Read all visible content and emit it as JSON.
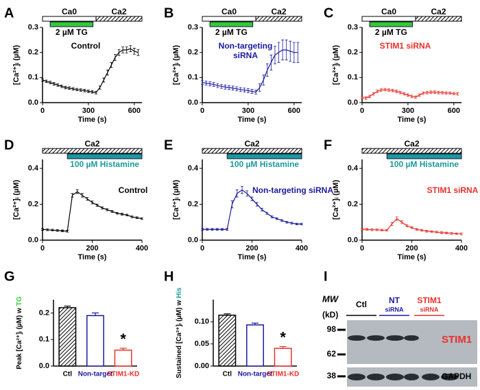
{
  "chart_data": [
    {
      "type": "line",
      "panel": "A",
      "xlabel": "Time (s)",
      "ylabel": "[Ca²⁺]ᵢ (µM)",
      "xlim": [
        0,
        650
      ],
      "xticks": [
        0,
        300,
        600
      ],
      "ylim": [
        0,
        0.3
      ],
      "yticks": [
        {
          "value": 0,
          "label": "0.0"
        },
        {
          "value": 0.1,
          "label": "0.1"
        },
        {
          "value": 0.2,
          "label": "0.2"
        },
        {
          "value": 0.3,
          "label": "0.3"
        }
      ],
      "periods": [
        {
          "label": "Ca0",
          "start": 0,
          "end": 350,
          "style": "open"
        },
        {
          "label": "Ca2",
          "start": 350,
          "end": 650,
          "style": "hatched"
        }
      ],
      "treatment": {
        "label": "2 µM TG",
        "start": 50,
        "end": 330,
        "color": "#33cc33",
        "label_color": "#000000"
      },
      "x": [
        0,
        25,
        50,
        75,
        100,
        125,
        150,
        175,
        200,
        225,
        250,
        275,
        300,
        325,
        350,
        375,
        400,
        425,
        450,
        475,
        500,
        525,
        550,
        575,
        600,
        625
      ],
      "series": [
        {
          "name": "Control",
          "color": "#000000",
          "values": [
            0.09,
            0.085,
            0.08,
            0.075,
            0.07,
            0.065,
            0.06,
            0.058,
            0.055,
            0.052,
            0.05,
            0.048,
            0.045,
            0.043,
            0.04,
            0.06,
            0.09,
            0.12,
            0.15,
            0.18,
            0.2,
            0.21,
            0.21,
            0.215,
            0.205,
            0.2
          ],
          "errors": [
            0.005,
            0.005,
            0.005,
            0.005,
            0.005,
            0.005,
            0.005,
            0.005,
            0.005,
            0.005,
            0.005,
            0.005,
            0.005,
            0.005,
            0.005,
            0.006,
            0.008,
            0.01,
            0.01,
            0.012,
            0.012,
            0.012,
            0.012,
            0.012,
            0.012,
            0.012
          ]
        }
      ]
    },
    {
      "type": "line",
      "panel": "B",
      "xlabel": "Time (s)",
      "ylabel": "[Ca²⁺]ᵢ (µM)",
      "xlim": [
        0,
        650
      ],
      "xticks": [
        0,
        300,
        600
      ],
      "ylim": [
        0,
        0.3
      ],
      "yticks": [
        {
          "value": 0,
          "label": "0.0"
        },
        {
          "value": 0.1,
          "label": "0.1"
        },
        {
          "value": 0.2,
          "label": "0.2"
        },
        {
          "value": 0.3,
          "label": "0.3"
        }
      ],
      "periods": [
        {
          "label": "Ca0",
          "start": 0,
          "end": 350,
          "style": "open"
        },
        {
          "label": "Ca2",
          "start": 350,
          "end": 650,
          "style": "hatched"
        }
      ],
      "treatment": {
        "label": "2 µM TG",
        "start": 50,
        "end": 330,
        "color": "#33cc33",
        "label_color": "#000000"
      },
      "x": [
        0,
        25,
        50,
        75,
        100,
        125,
        150,
        175,
        200,
        225,
        250,
        275,
        300,
        325,
        350,
        375,
        400,
        425,
        450,
        475,
        500,
        525,
        550,
        575,
        600,
        625
      ],
      "series": [
        {
          "name": "Non-targeting siRNA",
          "color": "#1a1aa0",
          "values": [
            0.08,
            0.078,
            0.075,
            0.072,
            0.068,
            0.065,
            0.062,
            0.06,
            0.058,
            0.055,
            0.052,
            0.05,
            0.048,
            0.045,
            0.042,
            0.06,
            0.09,
            0.13,
            0.16,
            0.19,
            0.2,
            0.21,
            0.21,
            0.205,
            0.2,
            0.2
          ],
          "errors": [
            0.008,
            0.008,
            0.008,
            0.008,
            0.008,
            0.008,
            0.008,
            0.008,
            0.008,
            0.008,
            0.008,
            0.008,
            0.008,
            0.008,
            0.008,
            0.015,
            0.02,
            0.025,
            0.03,
            0.035,
            0.04,
            0.04,
            0.04,
            0.04,
            0.04,
            0.04
          ]
        }
      ]
    },
    {
      "type": "line",
      "panel": "C",
      "xlabel": "Time (s)",
      "ylabel": "[Ca²⁺]ᵢ (µM)",
      "xlim": [
        0,
        650
      ],
      "xticks": [
        0,
        300,
        600
      ],
      "ylim": [
        0,
        0.3
      ],
      "yticks": [
        {
          "value": 0,
          "label": "0.0"
        },
        {
          "value": 0.1,
          "label": "0.1"
        },
        {
          "value": 0.2,
          "label": "0.2"
        },
        {
          "value": 0.3,
          "label": "0.3"
        }
      ],
      "periods": [
        {
          "label": "Ca0",
          "start": 0,
          "end": 350,
          "style": "open"
        },
        {
          "label": "Ca2",
          "start": 350,
          "end": 650,
          "style": "hatched"
        }
      ],
      "treatment": {
        "label": "2 µM TG",
        "start": 50,
        "end": 330,
        "color": "#33cc33",
        "label_color": "#000000"
      },
      "x": [
        0,
        25,
        50,
        75,
        100,
        125,
        150,
        175,
        200,
        225,
        250,
        275,
        300,
        325,
        350,
        375,
        400,
        425,
        450,
        475,
        500,
        525,
        550,
        575,
        600,
        625
      ],
      "series": [
        {
          "name": "STIM1 siRNA",
          "color": "#e8302a",
          "values": [
            0.02,
            0.018,
            0.025,
            0.035,
            0.045,
            0.05,
            0.052,
            0.05,
            0.048,
            0.045,
            0.04,
            0.035,
            0.03,
            0.025,
            0.022,
            0.03,
            0.038,
            0.04,
            0.042,
            0.042,
            0.04,
            0.04,
            0.038,
            0.038,
            0.036,
            0.035
          ],
          "errors": [
            0.005,
            0.005,
            0.005,
            0.005,
            0.005,
            0.005,
            0.005,
            0.005,
            0.005,
            0.005,
            0.005,
            0.005,
            0.005,
            0.005,
            0.005,
            0.005,
            0.005,
            0.005,
            0.005,
            0.005,
            0.005,
            0.005,
            0.005,
            0.005,
            0.005,
            0.005
          ]
        }
      ]
    },
    {
      "type": "line",
      "panel": "D",
      "xlabel": "Time (s)",
      "ylabel": "[Ca²⁺]ᵢ (µM)",
      "xlim": [
        0,
        400
      ],
      "xticks": [
        0,
        200,
        400
      ],
      "ylim": [
        0,
        0.45
      ],
      "yticks": [
        {
          "value": 0,
          "label": "0.0"
        },
        {
          "value": 0.2,
          "label": "0.2"
        },
        {
          "value": 0.4,
          "label": "0.4"
        }
      ],
      "periods": [
        {
          "label": "Ca2",
          "start": 0,
          "end": 400,
          "style": "hatched"
        }
      ],
      "treatment": {
        "label": "100 µM Histamine",
        "start": 100,
        "end": 400,
        "color": "#1a9a9a",
        "label_color": "#1a9a9a"
      },
      "x": [
        0,
        20,
        40,
        60,
        80,
        100,
        120,
        140,
        160,
        180,
        200,
        220,
        240,
        260,
        280,
        300,
        320,
        340,
        360,
        380,
        400
      ],
      "series": [
        {
          "name": "Control",
          "color": "#000000",
          "values": [
            0.06,
            0.058,
            0.056,
            0.054,
            0.052,
            0.05,
            0.25,
            0.27,
            0.25,
            0.23,
            0.21,
            0.195,
            0.18,
            0.17,
            0.16,
            0.15,
            0.145,
            0.14,
            0.13,
            0.125,
            0.12
          ],
          "errors": [
            0.005,
            0.005,
            0.005,
            0.005,
            0.005,
            0.005,
            0.01,
            0.01,
            0.01,
            0.008,
            0.008,
            0.006,
            0.006,
            0.006,
            0.006,
            0.005,
            0.005,
            0.005,
            0.005,
            0.005,
            0.005
          ]
        }
      ]
    },
    {
      "type": "line",
      "panel": "E",
      "xlabel": "Time (s)",
      "ylabel": "[Ca²⁺]ᵢ (µM)",
      "xlim": [
        0,
        400
      ],
      "xticks": [
        0,
        200,
        400
      ],
      "ylim": [
        0,
        0.45
      ],
      "yticks": [
        {
          "value": 0,
          "label": "0.0"
        },
        {
          "value": 0.2,
          "label": "0.2"
        },
        {
          "value": 0.4,
          "label": "0.4"
        }
      ],
      "periods": [
        {
          "label": "Ca2",
          "start": 0,
          "end": 400,
          "style": "hatched"
        }
      ],
      "treatment": {
        "label": "100 µM Histamine",
        "start": 100,
        "end": 400,
        "color": "#1a9a9a",
        "label_color": "#1a9a9a"
      },
      "x": [
        0,
        20,
        40,
        60,
        80,
        100,
        120,
        140,
        160,
        180,
        200,
        220,
        240,
        260,
        280,
        300,
        320,
        340,
        360,
        380,
        400
      ],
      "series": [
        {
          "name": "Non-targeting siRNA",
          "color": "#1a1aa0",
          "values": [
            0.06,
            0.06,
            0.06,
            0.06,
            0.06,
            0.06,
            0.2,
            0.26,
            0.28,
            0.26,
            0.23,
            0.2,
            0.17,
            0.15,
            0.13,
            0.12,
            0.11,
            0.1,
            0.095,
            0.09,
            0.09
          ],
          "errors": [
            0.005,
            0.005,
            0.005,
            0.005,
            0.005,
            0.005,
            0.02,
            0.02,
            0.02,
            0.015,
            0.01,
            0.01,
            0.008,
            0.006,
            0.006,
            0.005,
            0.005,
            0.005,
            0.005,
            0.005,
            0.005
          ]
        }
      ]
    },
    {
      "type": "line",
      "panel": "F",
      "xlabel": "Time (s)",
      "ylabel": "[Ca²⁺]ᵢ (µM)",
      "xlim": [
        0,
        400
      ],
      "xticks": [
        0,
        200,
        400
      ],
      "ylim": [
        0,
        0.45
      ],
      "yticks": [
        {
          "value": 0,
          "label": "0.0"
        },
        {
          "value": 0.2,
          "label": "0.2"
        },
        {
          "value": 0.4,
          "label": "0.4"
        }
      ],
      "periods": [
        {
          "label": "Ca2",
          "start": 0,
          "end": 400,
          "style": "hatched"
        }
      ],
      "treatment": {
        "label": "100 µM Histamine",
        "start": 100,
        "end": 400,
        "color": "#1a9a9a",
        "label_color": "#1a9a9a"
      },
      "x": [
        0,
        20,
        40,
        60,
        80,
        100,
        120,
        140,
        160,
        180,
        200,
        220,
        240,
        260,
        280,
        300,
        320,
        340,
        360,
        380,
        400
      ],
      "series": [
        {
          "name": "STIM1 siRNA",
          "color": "#e8302a",
          "values": [
            0.06,
            0.06,
            0.058,
            0.058,
            0.056,
            0.055,
            0.09,
            0.12,
            0.1,
            0.08,
            0.07,
            0.06,
            0.055,
            0.05,
            0.048,
            0.045,
            0.042,
            0.04,
            0.038,
            0.036,
            0.035
          ],
          "errors": [
            0.005,
            0.005,
            0.005,
            0.005,
            0.005,
            0.005,
            0.008,
            0.01,
            0.008,
            0.006,
            0.005,
            0.005,
            0.005,
            0.005,
            0.005,
            0.005,
            0.005,
            0.005,
            0.005,
            0.005,
            0.005
          ]
        }
      ]
    },
    {
      "type": "bar",
      "panel": "G",
      "ylabel": "Peak [Ca²⁺]ᵢ (µM) w",
      "ylabel_tag": "TG",
      "ylabel_tag_color": "#33cc33",
      "ylim": [
        0,
        0.25
      ],
      "yticks": [
        {
          "value": 0,
          "label": "0.0"
        },
        {
          "value": 0.1,
          "label": "0.1"
        },
        {
          "value": 0.2,
          "label": "0.2"
        }
      ],
      "categories": [
        "Ctl",
        "Non-target",
        "STIM1-KD"
      ],
      "colors": [
        "#000000",
        "#1a1aa0",
        "#e8302a"
      ],
      "styles": [
        "hatched",
        "open",
        "open"
      ],
      "values": [
        0.22,
        0.19,
        0.06
      ],
      "errors": [
        0.006,
        0.01,
        0.007
      ],
      "significance": [
        null,
        null,
        "*"
      ]
    },
    {
      "type": "bar",
      "panel": "H",
      "ylabel": "Sustained [Ca²⁺]ᵢ (µM) w",
      "ylabel_tag": "His",
      "ylabel_tag_color": "#1a9a9a",
      "ylim": [
        0,
        0.15
      ],
      "yticks": [
        {
          "value": 0,
          "label": "0.00"
        },
        {
          "value": 0.05,
          "label": "0.05"
        },
        {
          "value": 0.1,
          "label": "0.10"
        }
      ],
      "categories": [
        "Ctl",
        "Non-target",
        "STIM1-KD"
      ],
      "colors": [
        "#000000",
        "#1a1aa0",
        "#e8302a"
      ],
      "styles": [
        "hatched",
        "open",
        "open"
      ],
      "values": [
        0.115,
        0.093,
        0.04
      ],
      "errors": [
        0.003,
        0.004,
        0.004
      ],
      "significance": [
        null,
        null,
        "*"
      ]
    }
  ],
  "blot": {
    "panel": "I",
    "mw_title": "MW",
    "mw_unit": "(kD)",
    "markers": [
      98,
      62,
      38
    ],
    "lanes": [
      {
        "label": "Ctl",
        "color": "#000000"
      },
      {
        "label": "NT",
        "sub": "siRNA",
        "color": "#1a1aa0"
      },
      {
        "label": "STIM1",
        "sub": "siRNA",
        "color": "#e8302a"
      }
    ],
    "bands": [
      {
        "label": "STIM1",
        "color": "#e8302a"
      },
      {
        "label": "GAPDH",
        "color": "#000000"
      }
    ]
  }
}
